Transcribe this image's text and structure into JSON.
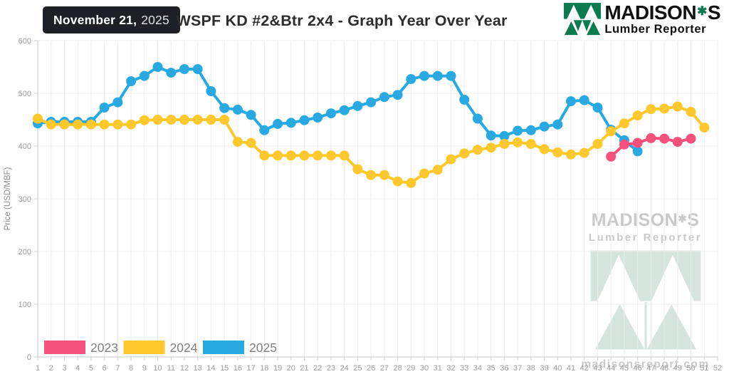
{
  "header": {
    "date": {
      "text": "November 21,",
      "year": "2025"
    },
    "title": "WSPF KD #2&Btr 2x4 - Graph Year Over Year",
    "brand": {
      "name_left": "MADISON",
      "name_right": "S",
      "tagline": "Lumber Reporter"
    }
  },
  "icons": {
    "maple_leaf": "✱"
  },
  "watermark": {
    "brand_left": "MADISON",
    "brand_right": "S",
    "tagline": "Lumber Reporter",
    "url": "madisonsreport.com"
  },
  "chart_data": {
    "type": "line",
    "title": "WSPF KD #2&Btr 2x4 - Graph Year Over Year",
    "xlabel": "",
    "ylabel": "Price (USD/MBF)",
    "ylim": [
      0,
      600
    ],
    "y_ticks": [
      0,
      100,
      200,
      300,
      400,
      500,
      600
    ],
    "grid": true,
    "legend_position": "bottom-left",
    "x": [
      1,
      2,
      3,
      4,
      5,
      6,
      7,
      8,
      9,
      10,
      11,
      12,
      13,
      14,
      15,
      16,
      17,
      18,
      19,
      20,
      21,
      22,
      23,
      24,
      25,
      26,
      27,
      28,
      29,
      30,
      31,
      32,
      33,
      34,
      35,
      36,
      37,
      38,
      39,
      40,
      41,
      42,
      43,
      44,
      45,
      46,
      47,
      48,
      49,
      50,
      51,
      52
    ],
    "series": [
      {
        "name": "2023",
        "color": "#F4517D",
        "values": [
          null,
          null,
          null,
          null,
          null,
          null,
          null,
          null,
          null,
          null,
          null,
          null,
          null,
          null,
          null,
          null,
          null,
          null,
          null,
          null,
          null,
          null,
          null,
          null,
          null,
          null,
          null,
          null,
          null,
          null,
          null,
          null,
          null,
          null,
          null,
          null,
          null,
          null,
          null,
          null,
          null,
          null,
          null,
          380,
          403,
          406,
          415,
          414,
          408,
          414,
          null,
          null
        ]
      },
      {
        "name": "2024",
        "color": "#FFC82D",
        "values": [
          452,
          441,
          441,
          441,
          441,
          441,
          441,
          441,
          449,
          450,
          450,
          450,
          450,
          450,
          450,
          408,
          406,
          382,
          382,
          382,
          382,
          382,
          382,
          382,
          356,
          345,
          345,
          333,
          330,
          348,
          355,
          375,
          386,
          393,
          397,
          404,
          407,
          404,
          394,
          388,
          384,
          387,
          404,
          428,
          443,
          458,
          470,
          471,
          475,
          465,
          435,
          null
        ]
      },
      {
        "name": "2025",
        "color": "#29A9E1",
        "values": [
          443,
          446,
          446,
          446,
          446,
          473,
          483,
          523,
          533,
          550,
          539,
          546,
          546,
          504,
          472,
          469,
          459,
          430,
          442,
          444,
          449,
          454,
          462,
          468,
          476,
          483,
          493,
          497,
          527,
          533,
          533,
          533,
          488,
          452,
          420,
          419,
          429,
          430,
          437,
          441,
          485,
          487,
          473,
          431,
          411,
          390,
          null,
          null,
          null,
          null,
          null,
          null
        ]
      }
    ]
  }
}
